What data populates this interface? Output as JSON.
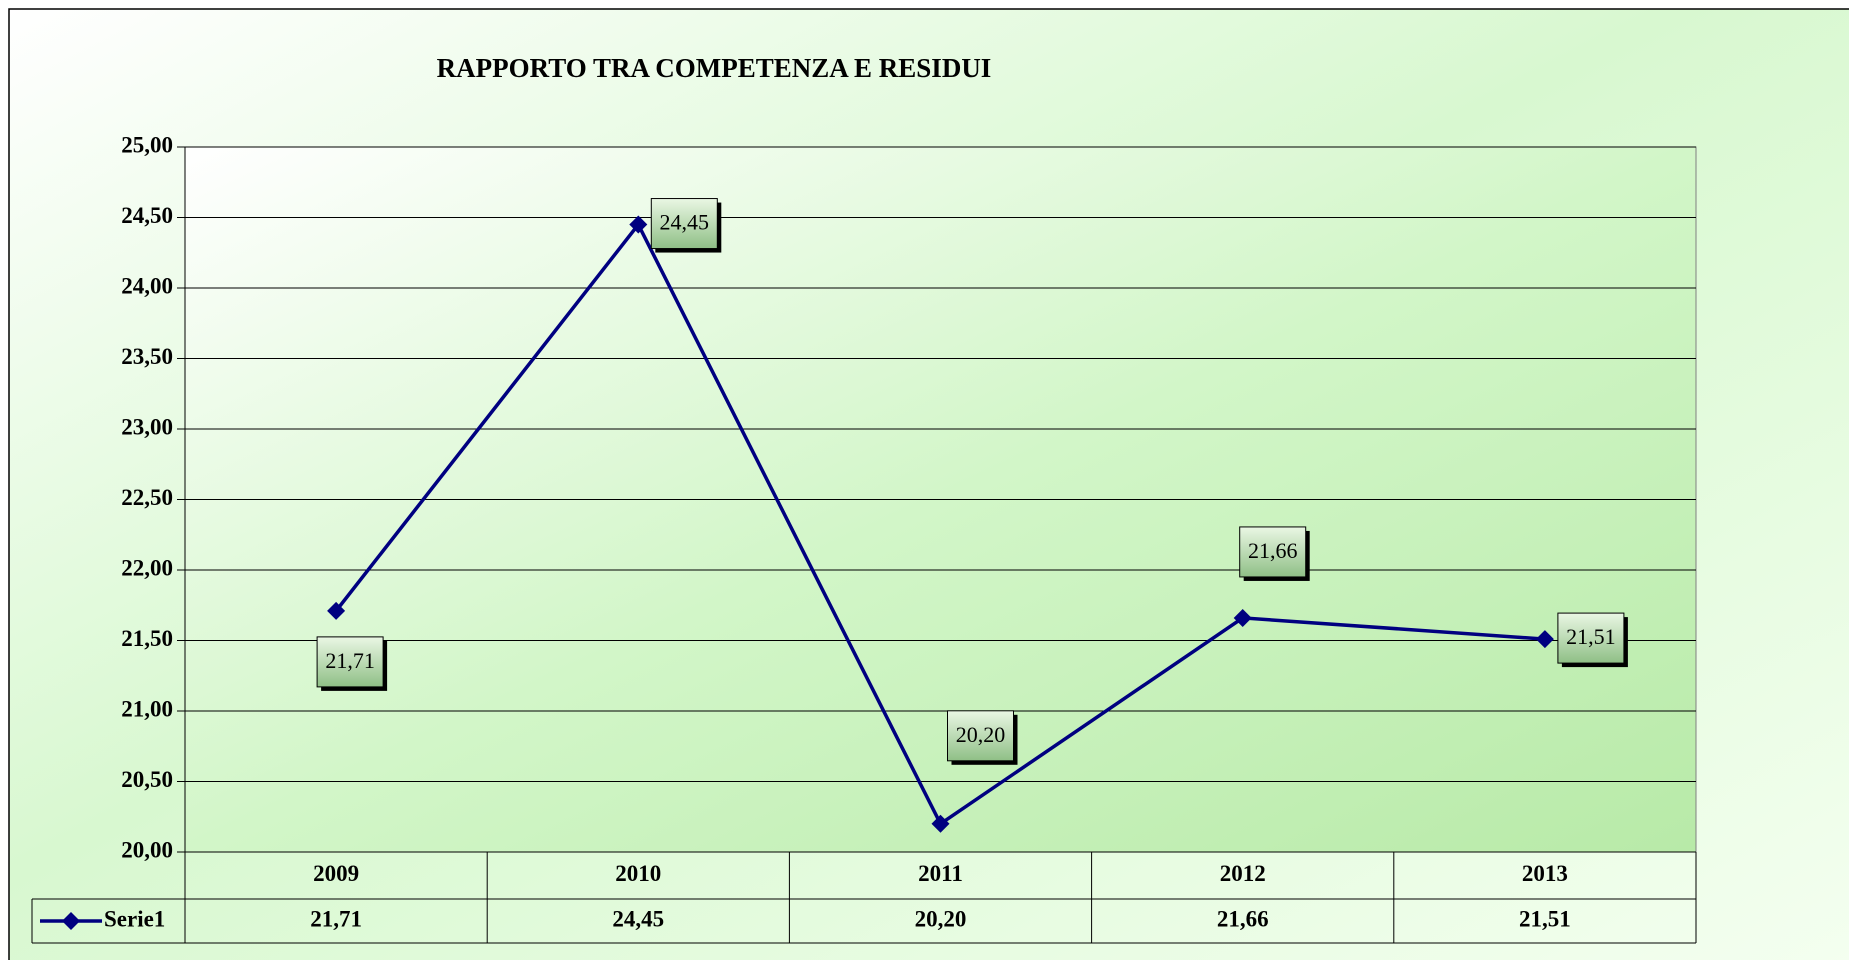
{
  "chart_data": {
    "type": "line",
    "title": "RAPPORTO TRA COMPETENZA E RESIDUI",
    "categories": [
      "2009",
      "2010",
      "2011",
      "2012",
      "2013"
    ],
    "series": [
      {
        "name": "Serie1",
        "color": "#000080",
        "values": [
          21.71,
          24.45,
          20.2,
          21.66,
          21.51
        ],
        "value_labels": [
          "21,71",
          "24,45",
          "20,20",
          "21,66",
          "21,51"
        ]
      }
    ],
    "ylim": [
      20,
      25
    ],
    "yticks": [
      {
        "value": 20,
        "label": "20,00"
      },
      {
        "value": 20.5,
        "label": "20,50"
      },
      {
        "value": 21,
        "label": "21,00"
      },
      {
        "value": 21.5,
        "label": "21,50"
      },
      {
        "value": 22,
        "label": "22,00"
      },
      {
        "value": 22.5,
        "label": "22,50"
      },
      {
        "value": 23,
        "label": "23,00"
      },
      {
        "value": 23.5,
        "label": "23,50"
      },
      {
        "value": 24,
        "label": "24,00"
      },
      {
        "value": 24.5,
        "label": "24,50"
      },
      {
        "value": 25,
        "label": "25,00"
      }
    ],
    "grid": true,
    "data_table": true
  }
}
